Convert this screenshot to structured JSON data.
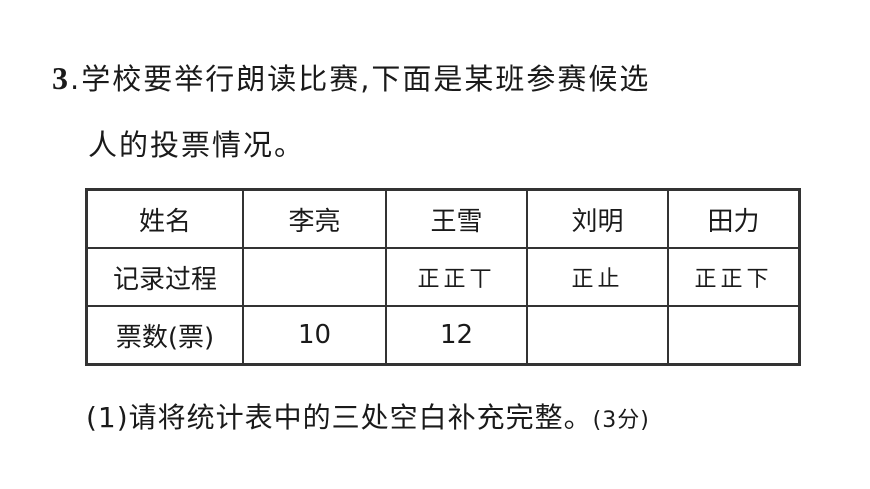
{
  "question": {
    "number": "3",
    "text_line1": ".学校要举行朗读比赛,下面是某班参赛候选",
    "text_line2": "人的投票情况。"
  },
  "table": {
    "header": [
      "姓名",
      "李亮",
      "王雪",
      "刘明",
      "田力"
    ],
    "rows": [
      [
        "记录过程",
        "",
        "正正丅",
        "正止",
        "正正下"
      ],
      [
        "票数(票)",
        "10",
        "12",
        "",
        ""
      ]
    ]
  },
  "subquestion": {
    "text": "(1)请将统计表中的三处空白补充完整。",
    "points": "(3分)"
  }
}
